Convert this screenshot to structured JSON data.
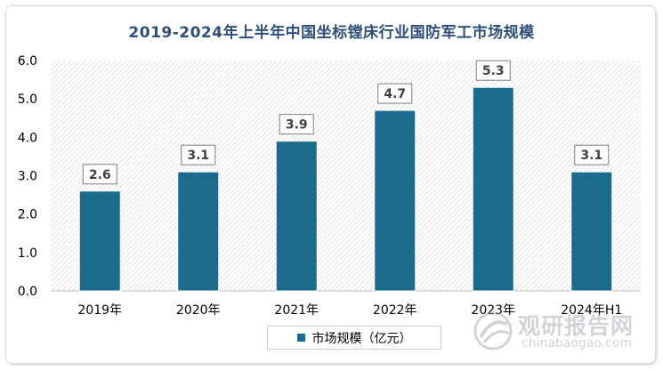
{
  "chart_data": {
    "type": "bar",
    "title": "2019-2024年上半年中国坐标镗床行业国防军工市场规模",
    "categories": [
      "2019年",
      "2020年",
      "2021年",
      "2022年",
      "2023年",
      "2024年H1"
    ],
    "series": [
      {
        "name": "市场规模（亿元）",
        "values": [
          2.6,
          3.1,
          3.9,
          4.7,
          5.3,
          3.1
        ]
      }
    ],
    "value_labels": [
      "2.6",
      "3.1",
      "3.9",
      "4.7",
      "5.3",
      "3.1"
    ],
    "y_ticks": [
      "0.0",
      "1.0",
      "2.0",
      "3.0",
      "4.0",
      "5.0",
      "6.0"
    ],
    "ylim": [
      0,
      6
    ],
    "xlabel": "",
    "ylabel": "",
    "grid": false,
    "legend_position": "bottom",
    "colors": {
      "bar": "#1b6c8c",
      "title": "#2e4f7a",
      "hatch": "#d6d6d6"
    }
  },
  "watermark": {
    "title": "观研报告网",
    "url": "chinabaogao.com",
    "icon": "chinabaogao-logo-icon"
  }
}
